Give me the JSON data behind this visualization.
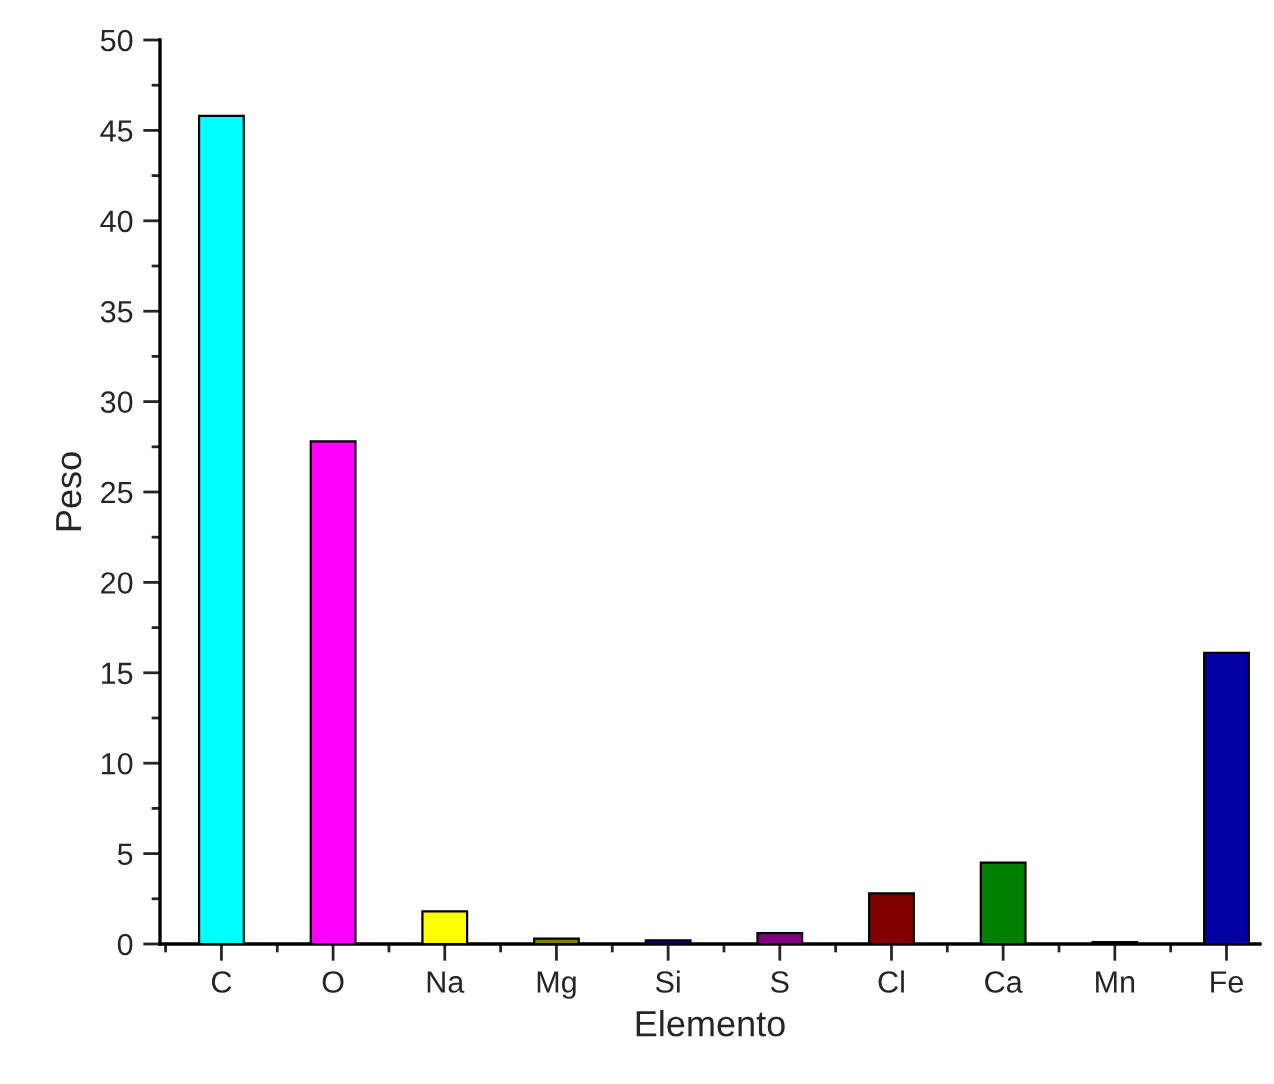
{
  "chart_data": {
    "type": "bar",
    "xlabel": "Elemento",
    "ylabel": "Peso",
    "categories": [
      "C",
      "O",
      "Na",
      "Mg",
      "Si",
      "S",
      "Cl",
      "Ca",
      "Mn",
      "Fe"
    ],
    "values": [
      45.8,
      27.8,
      1.8,
      0.3,
      0.2,
      0.6,
      2.8,
      4.5,
      0.1,
      16.1
    ],
    "colors": [
      "#00ffff",
      "#ff00ff",
      "#ffff00",
      "#808000",
      "#000080",
      "#800080",
      "#800000",
      "#008000",
      "#008080",
      "#0000a0"
    ],
    "ylim": [
      0,
      50
    ],
    "yticks": [
      0,
      5,
      10,
      15,
      20,
      25,
      30,
      35,
      40,
      45,
      50
    ],
    "grid": false,
    "legend": false
  }
}
